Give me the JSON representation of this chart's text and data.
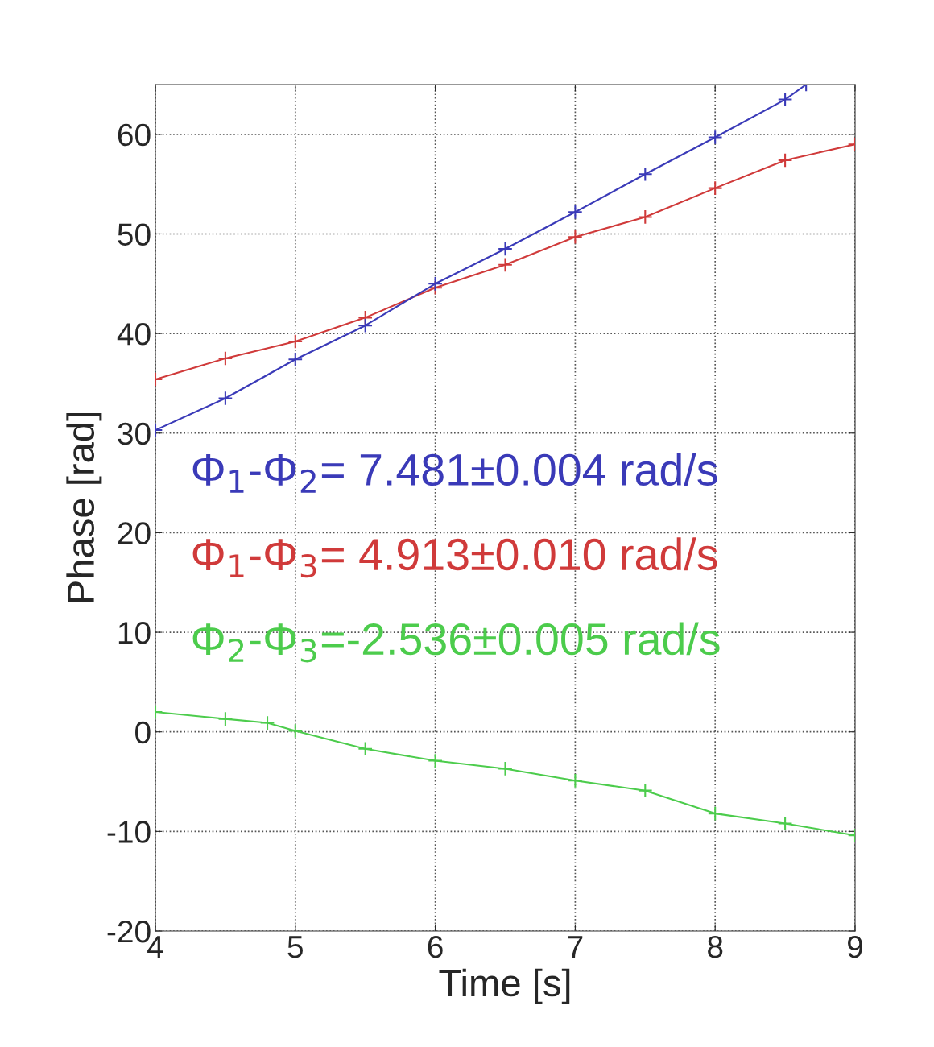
{
  "chart_data": {
    "type": "line",
    "xlabel": "Time [s]",
    "ylabel": "Phase [rad]",
    "series": [
      {
        "color": "#3a3ab8",
        "x": [
          4,
          4.5,
          5,
          5.5,
          6,
          6.5,
          7,
          7.5,
          8,
          8.5,
          8.65
        ],
        "values": [
          30.3,
          33.5,
          37.4,
          40.8,
          45.0,
          48.5,
          52.2,
          56,
          59.7,
          63.5,
          65
        ]
      },
      {
        "color": "#d03a3a",
        "x": [
          4,
          4.5,
          5,
          5.5,
          6,
          6.5,
          7,
          7.5,
          8,
          8.5,
          9
        ],
        "values": [
          35.4,
          37.5,
          39.2,
          41.6,
          44.6,
          46.9,
          49.7,
          51.7,
          54.6,
          57.4,
          59
        ]
      },
      {
        "color": "#4ccc4c",
        "x": [
          4,
          4.5,
          4.8,
          5,
          5.5,
          6,
          6.5,
          7,
          7.5,
          8,
          8.5,
          9
        ],
        "values": [
          2.0,
          1.3,
          0.9,
          0.1,
          -1.7,
          -2.9,
          -3.7,
          -4.9,
          -5.9,
          -8.2,
          -9.2,
          -10.4
        ]
      }
    ],
    "annotations": [
      "Φ$_{1}$-Φ$_{2}$= 7.481±0.004 rad/s",
      "Φ$_{1}$-Φ$_{3}$= 4.913±0.010 rad/s",
      "Φ$_{2}$-Φ$_{3}$=-2.536±0.005 rad/s"
    ],
    "xlim": [
      4,
      9
    ],
    "ylim": [
      -20,
      65
    ],
    "xticks": [
      4,
      5,
      6,
      7,
      8,
      9
    ],
    "yticks": [
      -20,
      -10,
      0,
      10,
      20,
      30,
      40,
      50,
      60
    ],
    "grid": true,
    "marker": "cross",
    "line_style": "solid",
    "legend": false
  }
}
